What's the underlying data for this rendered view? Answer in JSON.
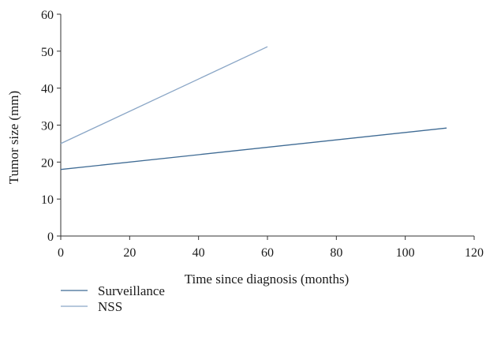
{
  "chart_data": {
    "type": "line",
    "xlabel": "Time since diagnosis (months)",
    "ylabel": "Tumor size (mm)",
    "xlim": [
      0,
      120
    ],
    "ylim": [
      0,
      60
    ],
    "xticks": [
      0,
      20,
      40,
      60,
      80,
      100,
      120
    ],
    "yticks": [
      0,
      10,
      20,
      30,
      40,
      50,
      60
    ],
    "grid": false,
    "legend_position": "bottom-left",
    "series": [
      {
        "name": "Surveillance",
        "color": "#3f6b94",
        "points": [
          [
            0,
            18
          ],
          [
            112,
            29.2
          ]
        ]
      },
      {
        "name": "NSS",
        "color": "#8aa6c6",
        "points": [
          [
            0,
            25
          ],
          [
            60,
            51.2
          ]
        ]
      }
    ]
  }
}
